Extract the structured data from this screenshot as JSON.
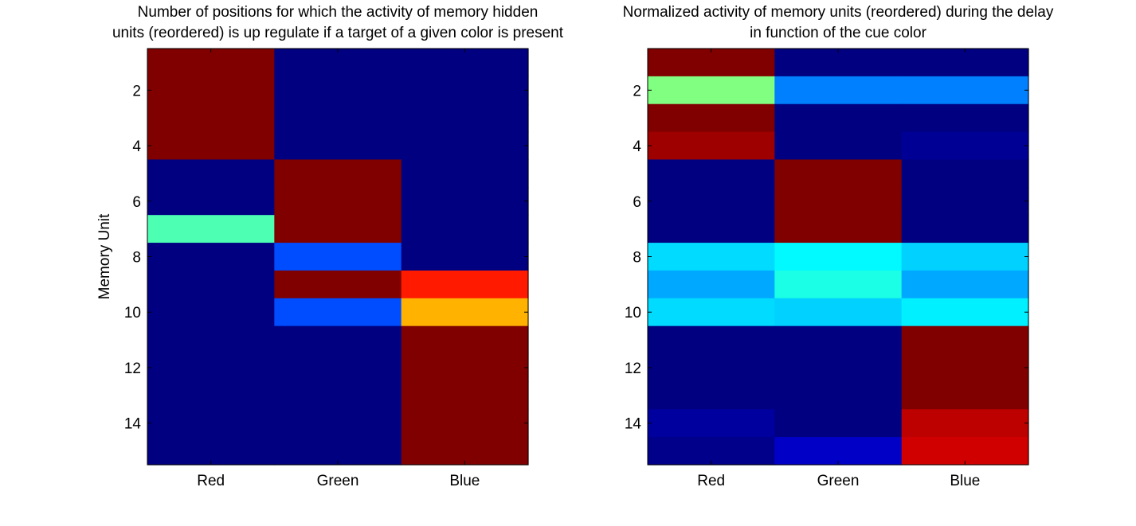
{
  "chart_data": [
    {
      "type": "heatmap",
      "title": [
        "Number of positions for which the activity of memory hidden",
        "units (reordered) is up regulate if a target of a given color is present"
      ],
      "xlabel": "",
      "ylabel": "Memory Unit",
      "x_categories": [
        "Red",
        "Green",
        "Blue"
      ],
      "y_ticks": [
        2,
        4,
        6,
        8,
        10,
        12,
        14
      ],
      "colormap": "jet",
      "clim": [
        0,
        1
      ],
      "rows": 15,
      "values": [
        [
          1.0,
          0.0,
          0.0
        ],
        [
          1.0,
          0.0,
          0.0
        ],
        [
          1.0,
          0.0,
          0.0
        ],
        [
          1.0,
          0.0,
          0.0
        ],
        [
          0.0,
          1.0,
          0.0
        ],
        [
          0.0,
          1.0,
          0.0
        ],
        [
          0.45,
          1.0,
          0.0
        ],
        [
          0.0,
          0.2,
          0.0
        ],
        [
          0.0,
          1.0,
          0.85
        ],
        [
          0.0,
          0.2,
          0.7
        ],
        [
          0.0,
          0.0,
          1.0
        ],
        [
          0.0,
          0.0,
          1.0
        ],
        [
          0.0,
          0.0,
          1.0
        ],
        [
          0.0,
          0.0,
          1.0
        ],
        [
          0.0,
          0.0,
          1.0
        ]
      ]
    },
    {
      "type": "heatmap",
      "title": [
        "Normalized activity of memory units (reordered) during the delay",
        "in function of the cue color"
      ],
      "xlabel": "",
      "ylabel": "",
      "x_categories": [
        "Red",
        "Green",
        "Blue"
      ],
      "y_ticks": [
        2,
        4,
        6,
        8,
        10,
        12,
        14
      ],
      "colormap": "jet",
      "clim": [
        0,
        1
      ],
      "rows": 15,
      "values": [
        [
          1.0,
          0.0,
          0.0
        ],
        [
          0.5,
          0.25,
          0.25
        ],
        [
          1.0,
          0.0,
          0.0
        ],
        [
          0.97,
          0.0,
          0.02
        ],
        [
          0.0,
          1.0,
          0.0
        ],
        [
          0.0,
          1.0,
          0.0
        ],
        [
          0.0,
          1.0,
          0.0
        ],
        [
          0.34,
          0.37,
          0.33
        ],
        [
          0.29,
          0.4,
          0.29
        ],
        [
          0.34,
          0.33,
          0.36
        ],
        [
          0.0,
          0.0,
          1.0
        ],
        [
          0.0,
          0.0,
          1.0
        ],
        [
          0.0,
          0.0,
          1.0
        ],
        [
          0.03,
          0.0,
          0.94
        ],
        [
          0.01,
          0.07,
          0.92
        ]
      ]
    }
  ]
}
